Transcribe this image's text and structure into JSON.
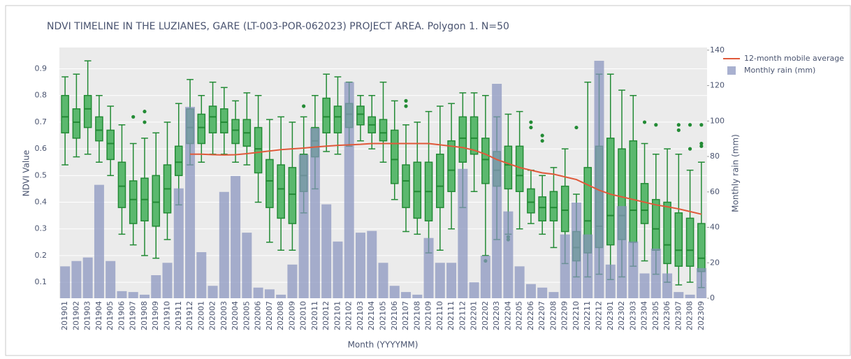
{
  "chart_data": {
    "type": "box",
    "title": "NDVI TIMELINE IN THE LUZIANES, GARE (LT-003-POR-062023) PROJECT AREA. Polygon 1. N=50",
    "x_label": "Month (YYYYMM)",
    "y_label": "NDVI Value",
    "y2_label": "Monthly rain (mm)",
    "categories": [
      "201901",
      "201902",
      "201903",
      "201904",
      "201905",
      "201906",
      "201907",
      "201908",
      "201909",
      "201910",
      "201911",
      "201912",
      "202001",
      "202002",
      "202003",
      "202004",
      "202005",
      "202006",
      "202007",
      "202008",
      "202009",
      "202010",
      "202011",
      "202012",
      "202101",
      "202102",
      "202103",
      "202104",
      "202105",
      "202106",
      "202107",
      "202108",
      "202109",
      "202110",
      "202111",
      "202112",
      "202201",
      "202202",
      "202203",
      "202204",
      "202205",
      "202206",
      "202207",
      "202208",
      "202209",
      "202210",
      "202211",
      "202212",
      "202301",
      "202302",
      "202303",
      "202304",
      "202305",
      "202306",
      "202307",
      "202308",
      "202309"
    ],
    "box_color": "#5bb86e",
    "box_line_color": "#238b35",
    "boxes": [
      {
        "min": 0.54,
        "q1": 0.66,
        "median": 0.72,
        "q3": 0.8,
        "max": 0.87
      },
      {
        "min": 0.57,
        "q1": 0.64,
        "median": 0.7,
        "q3": 0.75,
        "max": 0.88
      },
      {
        "min": 0.58,
        "q1": 0.68,
        "median": 0.75,
        "q3": 0.8,
        "max": 0.93
      },
      {
        "min": 0.55,
        "q1": 0.63,
        "median": 0.67,
        "q3": 0.72,
        "max": 0.8
      },
      {
        "min": 0.5,
        "q1": 0.56,
        "median": 0.62,
        "q3": 0.67,
        "max": 0.76
      },
      {
        "min": 0.28,
        "q1": 0.38,
        "median": 0.46,
        "q3": 0.55,
        "max": 0.69
      },
      {
        "min": 0.24,
        "q1": 0.32,
        "median": 0.41,
        "q3": 0.48,
        "max": 0.62,
        "outliers": [
          0.72
        ]
      },
      {
        "min": 0.2,
        "q1": 0.33,
        "median": 0.41,
        "q3": 0.49,
        "max": 0.64,
        "outliers": [
          0.7,
          0.74
        ]
      },
      {
        "min": 0.19,
        "q1": 0.31,
        "median": 0.4,
        "q3": 0.5,
        "max": 0.66
      },
      {
        "min": 0.26,
        "q1": 0.36,
        "median": 0.45,
        "q3": 0.54,
        "max": 0.7
      },
      {
        "min": 0.39,
        "q1": 0.5,
        "median": 0.55,
        "q3": 0.61,
        "max": 0.77
      },
      {
        "min": 0.54,
        "q1": 0.62,
        "median": 0.68,
        "q3": 0.75,
        "max": 0.86
      },
      {
        "min": 0.55,
        "q1": 0.62,
        "median": 0.68,
        "q3": 0.73,
        "max": 0.8
      },
      {
        "min": 0.58,
        "q1": 0.66,
        "median": 0.72,
        "q3": 0.76,
        "max": 0.85
      },
      {
        "min": 0.58,
        "q1": 0.66,
        "median": 0.7,
        "q3": 0.75,
        "max": 0.83
      },
      {
        "min": 0.55,
        "q1": 0.62,
        "median": 0.67,
        "q3": 0.71,
        "max": 0.78
      },
      {
        "min": 0.54,
        "q1": 0.61,
        "median": 0.66,
        "q3": 0.71,
        "max": 0.81
      },
      {
        "min": 0.4,
        "q1": 0.51,
        "median": 0.6,
        "q3": 0.68,
        "max": 0.8
      },
      {
        "min": 0.25,
        "q1": 0.38,
        "median": 0.48,
        "q3": 0.56,
        "max": 0.71
      },
      {
        "min": 0.22,
        "q1": 0.34,
        "median": 0.45,
        "q3": 0.54,
        "max": 0.72
      },
      {
        "min": 0.22,
        "q1": 0.32,
        "median": 0.43,
        "q3": 0.53,
        "max": 0.7
      },
      {
        "min": 0.36,
        "q1": 0.44,
        "median": 0.5,
        "q3": 0.58,
        "max": 0.72,
        "outliers": [
          0.76
        ]
      },
      {
        "min": 0.45,
        "q1": 0.57,
        "median": 0.63,
        "q3": 0.68,
        "max": 0.8
      },
      {
        "min": 0.59,
        "q1": 0.66,
        "median": 0.72,
        "q3": 0.79,
        "max": 0.88
      },
      {
        "min": 0.58,
        "q1": 0.66,
        "median": 0.72,
        "q3": 0.76,
        "max": 0.87
      },
      {
        "min": 0.61,
        "q1": 0.68,
        "median": 0.73,
        "q3": 0.77,
        "max": 0.85
      },
      {
        "min": 0.63,
        "q1": 0.69,
        "median": 0.73,
        "q3": 0.76,
        "max": 0.8
      },
      {
        "min": 0.6,
        "q1": 0.66,
        "median": 0.69,
        "q3": 0.72,
        "max": 0.8
      },
      {
        "min": 0.55,
        "q1": 0.63,
        "median": 0.66,
        "q3": 0.71,
        "max": 0.85
      },
      {
        "min": 0.41,
        "q1": 0.47,
        "median": 0.56,
        "q3": 0.67,
        "max": 0.78
      },
      {
        "min": 0.29,
        "q1": 0.38,
        "median": 0.48,
        "q3": 0.54,
        "max": 0.69,
        "outliers": [
          0.76,
          0.78
        ]
      },
      {
        "min": 0.28,
        "q1": 0.34,
        "median": 0.44,
        "q3": 0.55,
        "max": 0.7
      },
      {
        "min": 0.21,
        "q1": 0.33,
        "median": 0.44,
        "q3": 0.55,
        "max": 0.74
      },
      {
        "min": 0.22,
        "q1": 0.38,
        "median": 0.46,
        "q3": 0.58,
        "max": 0.76
      },
      {
        "min": 0.3,
        "q1": 0.44,
        "median": 0.52,
        "q3": 0.63,
        "max": 0.77
      },
      {
        "min": 0.38,
        "q1": 0.55,
        "median": 0.64,
        "q3": 0.72,
        "max": 0.81
      },
      {
        "min": 0.44,
        "q1": 0.58,
        "median": 0.64,
        "q3": 0.72,
        "max": 0.81
      },
      {
        "min": 0.2,
        "q1": 0.47,
        "median": 0.56,
        "q3": 0.64,
        "max": 0.8,
        "outliers": [
          0.18
        ]
      },
      {
        "min": 0.26,
        "q1": 0.46,
        "median": 0.52,
        "q3": 0.59,
        "max": 0.72
      },
      {
        "min": 0.28,
        "q1": 0.45,
        "median": 0.54,
        "q3": 0.61,
        "max": 0.73,
        "outliers": [
          0.27,
          0.26
        ]
      },
      {
        "min": 0.3,
        "q1": 0.44,
        "median": 0.5,
        "q3": 0.61,
        "max": 0.74
      },
      {
        "min": 0.32,
        "q1": 0.36,
        "median": 0.4,
        "q3": 0.45,
        "max": 0.52,
        "outliers": [
          0.68,
          0.7
        ]
      },
      {
        "min": 0.28,
        "q1": 0.33,
        "median": 0.38,
        "q3": 0.42,
        "max": 0.5,
        "outliers": [
          0.63,
          0.65
        ]
      },
      {
        "min": 0.23,
        "q1": 0.33,
        "median": 0.38,
        "q3": 0.44,
        "max": 0.53
      },
      {
        "min": 0.17,
        "q1": 0.29,
        "median": 0.37,
        "q3": 0.46,
        "max": 0.6
      },
      {
        "min": 0.12,
        "q1": 0.18,
        "median": 0.23,
        "q3": 0.29,
        "max": 0.43,
        "outliers": [
          0.68
        ]
      },
      {
        "min": 0.12,
        "q1": 0.21,
        "median": 0.33,
        "q3": 0.53,
        "max": 0.85
      },
      {
        "min": 0.13,
        "q1": 0.23,
        "median": 0.31,
        "q3": 0.61,
        "max": 0.88
      },
      {
        "min": 0.11,
        "q1": 0.24,
        "median": 0.35,
        "q3": 0.64,
        "max": 0.88
      },
      {
        "min": 0.12,
        "q1": 0.26,
        "median": 0.35,
        "q3": 0.6,
        "max": 0.82
      },
      {
        "min": 0.16,
        "q1": 0.25,
        "median": 0.37,
        "q3": 0.63,
        "max": 0.8
      },
      {
        "min": 0.18,
        "q1": 0.32,
        "median": 0.37,
        "q3": 0.47,
        "max": 0.62,
        "outliers": [
          0.7
        ]
      },
      {
        "min": 0.13,
        "q1": 0.22,
        "median": 0.3,
        "q3": 0.41,
        "max": 0.58,
        "outliers": [
          0.69
        ]
      },
      {
        "min": 0.1,
        "q1": 0.17,
        "median": 0.24,
        "q3": 0.4,
        "max": 0.6
      },
      {
        "min": 0.09,
        "q1": 0.16,
        "median": 0.22,
        "q3": 0.36,
        "max": 0.58,
        "outliers": [
          0.67,
          0.69
        ]
      },
      {
        "min": 0.1,
        "q1": 0.16,
        "median": 0.22,
        "q3": 0.34,
        "max": 0.52,
        "outliers": [
          0.6,
          0.69
        ]
      },
      {
        "min": 0.08,
        "q1": 0.14,
        "median": 0.19,
        "q3": 0.32,
        "max": 0.55,
        "outliers": [
          0.61,
          0.62,
          0.69
        ]
      }
    ],
    "series": [
      {
        "name": "12-month mobile average",
        "type": "line",
        "color": "#e0593a",
        "values": [
          null,
          null,
          null,
          null,
          null,
          null,
          null,
          null,
          null,
          null,
          null,
          0.58,
          0.58,
          0.578,
          0.577,
          0.578,
          0.582,
          0.587,
          0.592,
          0.597,
          0.6,
          0.603,
          0.607,
          0.61,
          0.613,
          0.615,
          0.617,
          0.62,
          0.62,
          0.62,
          0.62,
          0.62,
          0.62,
          0.615,
          0.61,
          0.605,
          0.595,
          0.58,
          0.56,
          0.545,
          0.53,
          0.52,
          0.51,
          0.505,
          0.495,
          0.485,
          0.465,
          0.445,
          0.43,
          0.42,
          0.41,
          0.4,
          0.39,
          0.383,
          0.375,
          0.365,
          0.355
        ]
      },
      {
        "name": "Monthly rain (mm)",
        "type": "bar",
        "axis": "y2",
        "color": "#8893be",
        "values": [
          18,
          21,
          23,
          64,
          21,
          4,
          3.5,
          2,
          13,
          20,
          62,
          108,
          26,
          7,
          60,
          69,
          37,
          6,
          5,
          2,
          19,
          81,
          96,
          53,
          32,
          122,
          37,
          38,
          20,
          7,
          3.5,
          2,
          34,
          20,
          20,
          73,
          9,
          24,
          121,
          49,
          18,
          8,
          6,
          3.5,
          36,
          54,
          36,
          134,
          19,
          52,
          32,
          14,
          28,
          14,
          3.5,
          2,
          17
        ]
      }
    ],
    "ylim": [
      0.04,
      0.98
    ],
    "yticks": [
      0.1,
      0.2,
      0.3,
      0.4,
      0.5,
      0.6,
      0.7,
      0.8,
      0.9
    ],
    "y2lim": [
      0,
      141.5
    ],
    "y2ticks": [
      0,
      20,
      40,
      60,
      80,
      100,
      120,
      140
    ],
    "grid": true,
    "legend": "top-right"
  }
}
